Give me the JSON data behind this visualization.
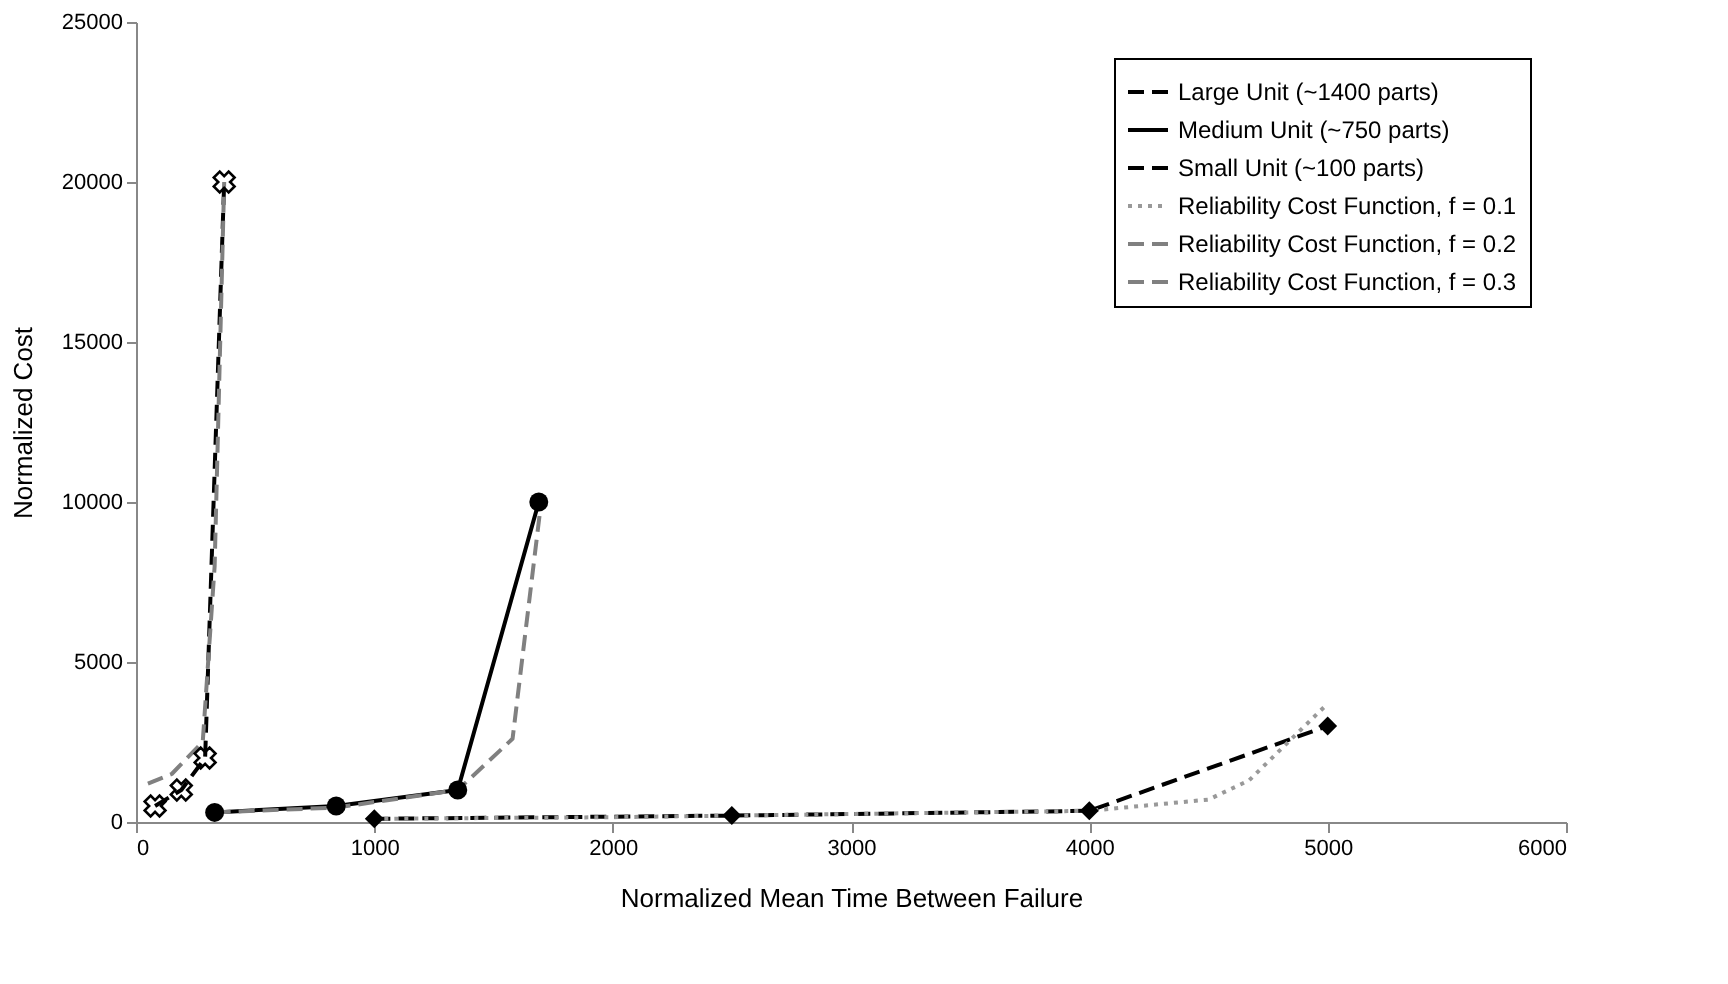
{
  "chart_data": {
    "type": "line",
    "xlabel": "Normalized Mean Time Between Failure",
    "ylabel": "Normalized Cost",
    "xlim": [
      0,
      6000
    ],
    "xticks": [
      0,
      1000,
      2000,
      3000,
      4000,
      5000,
      6000
    ],
    "ylim": [
      0,
      25000
    ],
    "yticks": [
      0,
      5000,
      10000,
      15000,
      20000,
      25000
    ],
    "grid": false,
    "legend": "top right",
    "series": [
      {
        "name": "Large Unit (~1400 parts)",
        "color": "#000000",
        "marker": "diamond",
        "line_style": "dashed",
        "x": [
          1000,
          2500,
          4000,
          5000
        ],
        "values": [
          100,
          200,
          350,
          3000
        ]
      },
      {
        "name": "Medium Unit (~750 parts)",
        "color": "#000000",
        "marker": "circle",
        "line_style": "solid",
        "x": [
          330,
          840,
          1350,
          1690
        ],
        "values": [
          300,
          500,
          1000,
          10000
        ]
      },
      {
        "name": "Small Unit (~100 parts)",
        "color": "#000000",
        "marker": "cross",
        "line_style": "dashed",
        "x": [
          80,
          190,
          290,
          370
        ],
        "values": [
          500,
          1000,
          2000,
          20000
        ]
      },
      {
        "name": "Reliability Cost Function, f = 0.1",
        "color": "#999999",
        "marker": "none",
        "line_style": "dotted",
        "x": [
          1000,
          2000,
          3000,
          4000,
          4500,
          4670,
          5000
        ],
        "values": [
          100,
          150,
          250,
          350,
          700,
          1300,
          3700
        ]
      },
      {
        "name": "Reliability Cost Function, f = 0.2",
        "color": "#808080",
        "marker": "none",
        "line_style": "dashed",
        "x": [
          330,
          840,
          1350,
          1580,
          1700
        ],
        "values": [
          300,
          450,
          1000,
          2600,
          10000
        ]
      },
      {
        "name": "Reliability Cost Function, f = 0.3",
        "color": "#808080",
        "marker": "none",
        "line_style": "dashed",
        "x": [
          50,
          150,
          280,
          330,
          370
        ],
        "values": [
          1200,
          1500,
          2500,
          8000,
          20000
        ]
      }
    ]
  }
}
